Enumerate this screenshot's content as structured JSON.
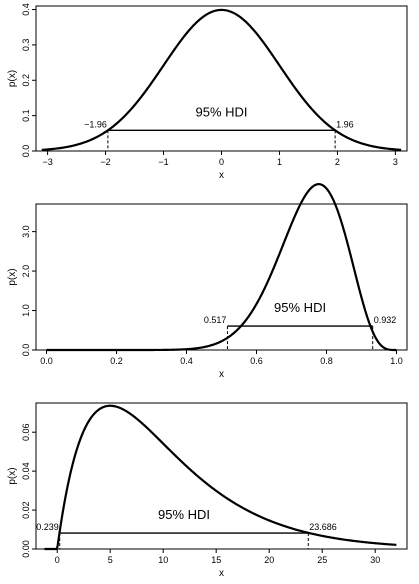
{
  "chart_data": [
    {
      "type": "line",
      "distribution": "normal",
      "params": {
        "mean": 0,
        "sd": 1
      },
      "x_range": [
        -3.1,
        3.1
      ],
      "xlabel": "x",
      "ylabel": "p(x)",
      "xlim": [
        -3.2,
        3.2
      ],
      "ylim": [
        0,
        0.41
      ],
      "xticks": [
        -3,
        -2,
        -1,
        0,
        1,
        2,
        3
      ],
      "xtick_labels": [
        "−3",
        "−2",
        "−1",
        "0",
        "1",
        "2",
        "3"
      ],
      "yticks": [
        0.0,
        0.1,
        0.2,
        0.3,
        0.4
      ],
      "ytick_labels": [
        "0.0",
        "0.1",
        "0.2",
        "0.3",
        "0.4"
      ],
      "hdi": {
        "label": "95% HDI",
        "low": -1.96,
        "high": 1.96,
        "low_label": "−1.96",
        "high_label": "1.96",
        "level": 0.0584
      }
    },
    {
      "type": "line",
      "distribution": "beta",
      "params": {
        "a": 15,
        "b": 5
      },
      "x_range": [
        0,
        1
      ],
      "xlabel": "x",
      "ylabel": "p(x)",
      "xlim": [
        -0.03,
        1.03
      ],
      "ylim": [
        0,
        3.7
      ],
      "xticks": [
        0.0,
        0.2,
        0.4,
        0.6,
        0.8,
        1.0
      ],
      "xtick_labels": [
        "0.0",
        "0.2",
        "0.4",
        "0.6",
        "0.8",
        "1.0"
      ],
      "yticks": [
        0.0,
        1.0,
        2.0,
        3.0
      ],
      "ytick_labels": [
        "0.0",
        "1.0",
        "2.0",
        "3.0"
      ],
      "hdi": {
        "label": "95% HDI",
        "low": 0.517,
        "high": 0.932,
        "low_label": "0.517",
        "high_label": "0.932",
        "level": 0.606
      }
    },
    {
      "type": "line",
      "distribution": "gamma",
      "params": {
        "shape": 2,
        "rate": 0.2
      },
      "x_range": [
        -1.2,
        32
      ],
      "xlabel": "x",
      "ylabel": "p(x)",
      "xlim": [
        -2,
        33
      ],
      "ylim": [
        0,
        0.075
      ],
      "xticks": [
        0,
        5,
        10,
        15,
        20,
        25,
        30
      ],
      "xtick_labels": [
        "0",
        "5",
        "10",
        "15",
        "20",
        "25",
        "30"
      ],
      "yticks": [
        0.0,
        0.02,
        0.04,
        0.06
      ],
      "ytick_labels": [
        "0.00",
        "0.02",
        "0.04",
        "0.06"
      ],
      "hdi": {
        "label": "95% HDI",
        "low": 0.239,
        "high": 23.686,
        "low_label": "0.239",
        "high_label": "23.686",
        "level": 0.0082
      }
    }
  ]
}
